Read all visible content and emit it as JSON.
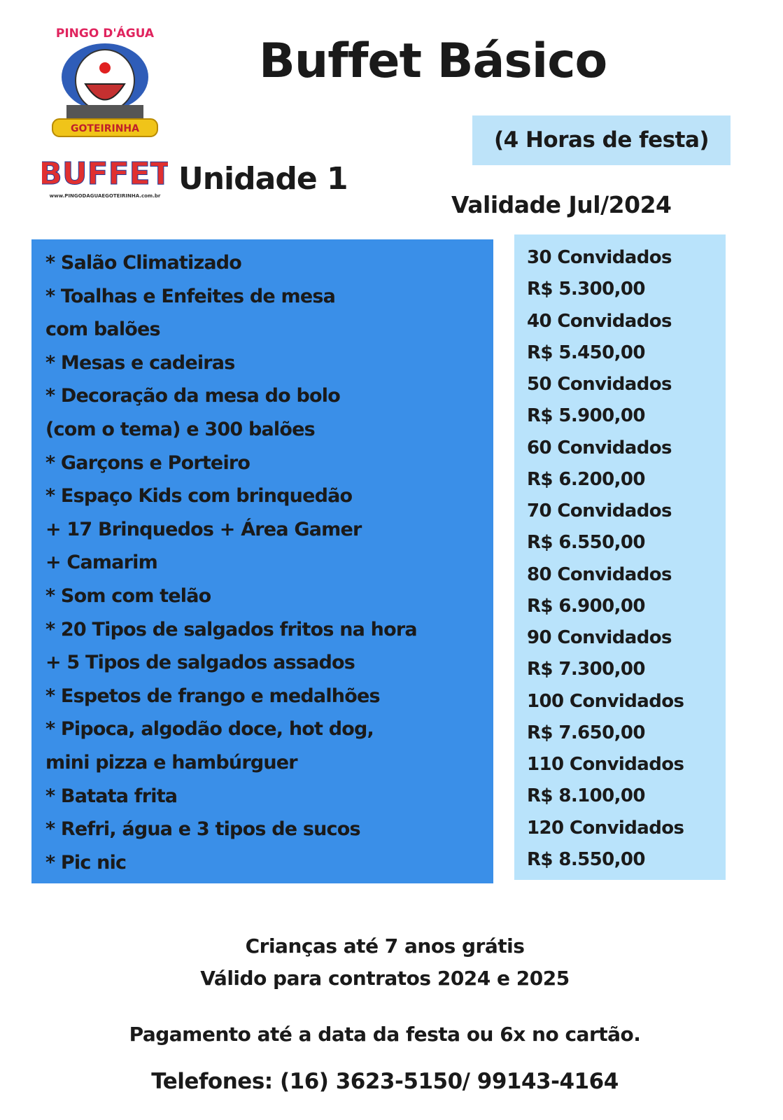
{
  "logo": {
    "top_text": "PINGO D'ÁGUA",
    "badge_text": "GOTEIRINHA",
    "brand": "BUFFET",
    "url": "www.PINGODAGUAEGOTEIRINHA.com.br"
  },
  "header": {
    "title": "Buffet Básico",
    "duration": "(4 Horas de festa)",
    "unit": "Unidade 1",
    "validity": "Validade Jul/2024"
  },
  "features": [
    "* Salão Climatizado",
    "* Toalhas e Enfeites de mesa",
    "com balões",
    "* Mesas e cadeiras",
    "* Decoração da mesa do bolo",
    "(com o tema) e 300 balões",
    "* Garçons e Porteiro",
    "* Espaço Kids com brinquedão",
    "+ 17 Brinquedos + Área Gamer",
    "+ Camarim",
    "* Som com telão",
    "* 20 Tipos de salgados fritos na hora",
    "+ 5 Tipos de salgados assados",
    "* Espetos de frango e medalhões",
    "* Pipoca, algodão doce, hot dog,",
    "mini pizza e hambúrguer",
    "* Batata frita",
    "* Refri, água e 3 tipos de sucos",
    "* Pic nic"
  ],
  "prices": [
    {
      "guests": "30 Convidados",
      "price": "R$ 5.300,00"
    },
    {
      "guests": "40 Convidados",
      "price": "R$ 5.450,00"
    },
    {
      "guests": "50 Convidados",
      "price": "R$ 5.900,00"
    },
    {
      "guests": "60 Convidados",
      "price": "R$ 6.200,00"
    },
    {
      "guests": "70 Convidados",
      "price": "R$ 6.550,00"
    },
    {
      "guests": "80 Convidados",
      "price": "R$ 6.900,00"
    },
    {
      "guests": "90 Convidados",
      "price": "R$ 7.300,00"
    },
    {
      "guests": "100 Convidados",
      "price": "R$ 7.650,00"
    },
    {
      "guests": "110 Convidados",
      "price": "R$ 8.100,00"
    },
    {
      "guests": "120 Convidados",
      "price": "R$ 8.550,00"
    }
  ],
  "footer": {
    "children": "Crianças até 7 anos grátis",
    "contracts": "Válido para contratos 2024 e 2025",
    "payment": "Pagamento até a data da festa ou 6x no cartão.",
    "phones": "Telefones: (16) 3623-5150/ 99143-4164"
  }
}
